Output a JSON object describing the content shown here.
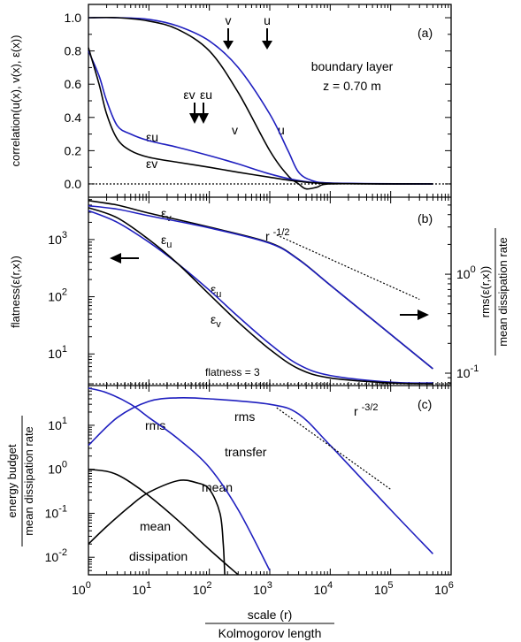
{
  "figure": {
    "x_axis": {
      "label_top": "scale (r)",
      "label_bottom": "Kolmogorov length",
      "ticks": [
        {
          "value": 1,
          "base": "10",
          "exp": "0"
        },
        {
          "value": 10,
          "base": "10",
          "exp": "1"
        },
        {
          "value": 100,
          "base": "10",
          "exp": "2"
        },
        {
          "value": 1000,
          "base": "10",
          "exp": "3"
        },
        {
          "value": 10000,
          "base": "10",
          "exp": "4"
        },
        {
          "value": 100000,
          "base": "10",
          "exp": "5"
        },
        {
          "value": 1000000,
          "base": "10",
          "exp": "6"
        }
      ],
      "scale": "log",
      "range": [
        1,
        1000000
      ]
    },
    "colors": {
      "u_series": "#1f1fbf",
      "v_series": "#000000",
      "reference": "#000000"
    }
  },
  "chart_data": [
    {
      "panel_label": "(a)",
      "type": "line",
      "ylabel": "correlation(u(x), v(x), ε(x))",
      "yscale": "linear",
      "ylim": [
        -0.08,
        1.08
      ],
      "y_ticks": [
        "0.0",
        "0.2",
        "0.4",
        "0.6",
        "0.8",
        "1.0"
      ],
      "y_tick_values": [
        0,
        0.2,
        0.4,
        0.6,
        0.8,
        1.0
      ],
      "annotations": [
        "boundary layer",
        "z = 0.70 m"
      ],
      "arrow_labels": [
        {
          "text": "v",
          "at_r": 250
        },
        {
          "text": "u",
          "at_r": 1200
        },
        {
          "text": "εv",
          "at_r": 70
        },
        {
          "text": "εu",
          "at_r": 90
        }
      ],
      "series": [
        {
          "name": "u",
          "color": "#1f1fbf",
          "x": [
            1,
            3,
            10,
            30,
            100,
            300,
            1000,
            2000,
            3000,
            5000,
            10000,
            100000,
            500000
          ],
          "y": [
            1.0,
            1.0,
            0.99,
            0.95,
            0.86,
            0.7,
            0.42,
            0.2,
            0.07,
            0.02,
            0.005,
            0.0,
            0.0
          ]
        },
        {
          "name": "v",
          "color": "#000000",
          "x": [
            1,
            3,
            10,
            30,
            100,
            300,
            1000,
            2000,
            3000,
            4000,
            6000,
            10000,
            100000,
            500000
          ],
          "y": [
            1.0,
            1.0,
            0.98,
            0.93,
            0.8,
            0.55,
            0.2,
            0.05,
            0.0,
            -0.03,
            -0.02,
            0.0,
            0.0,
            0.0
          ]
        },
        {
          "name": "εu",
          "color": "#1f1fbf",
          "x": [
            1,
            1.5,
            2,
            3,
            5,
            10,
            30,
            100,
            300,
            1000,
            3000,
            10000,
            500000
          ],
          "y": [
            0.8,
            0.65,
            0.5,
            0.35,
            0.3,
            0.26,
            0.22,
            0.17,
            0.12,
            0.06,
            0.02,
            0.005,
            0.0
          ]
        },
        {
          "name": "εv",
          "color": "#000000",
          "x": [
            1,
            1.5,
            2,
            3,
            5,
            10,
            30,
            100,
            300,
            1000,
            3000,
            10000,
            500000
          ],
          "y": [
            0.82,
            0.6,
            0.42,
            0.27,
            0.2,
            0.16,
            0.13,
            0.1,
            0.07,
            0.04,
            0.015,
            0.003,
            0.0
          ]
        }
      ],
      "reference_lines": [
        {
          "label": "",
          "y": 0.0,
          "style": "dotted"
        }
      ]
    },
    {
      "panel_label": "(b)",
      "type": "line",
      "ylabel": "flatness(ε(r,x))",
      "yscale": "log",
      "ylim": [
        2.8,
        5500
      ],
      "y_ticks": [
        {
          "base": "10",
          "exp": "1",
          "value": 10
        },
        {
          "base": "10",
          "exp": "2",
          "value": 100
        },
        {
          "base": "10",
          "exp": "3",
          "value": 1000
        }
      ],
      "right_axis": {
        "label_top": "rms(ε(r,x))",
        "label_bottom": "mean dissipation rate",
        "scale": "log",
        "ticks": [
          {
            "base": "10",
            "exp": "0",
            "value": 1
          },
          {
            "base": "10",
            "exp": "-1",
            "value": 0.1
          }
        ]
      },
      "annotations": [
        "r -1/2",
        "flatness = 3"
      ],
      "series": [
        {
          "name": "εv (rms)",
          "color": "#000000",
          "x": [
            1,
            3,
            10,
            100,
            1000,
            3000,
            10000,
            100000,
            500000
          ],
          "y": [
            4800,
            4000,
            2900,
            1650,
            880,
            450,
            160,
            22,
            5.5
          ]
        },
        {
          "name": "εu (rms)",
          "color": "#1f1fbf",
          "x": [
            1,
            3,
            10,
            100,
            1000,
            3000,
            10000,
            100000,
            500000
          ],
          "y": [
            3900,
            3400,
            2600,
            1600,
            860,
            445,
            160,
            22,
            5.5
          ]
        },
        {
          "name": "εu (flatness)",
          "color": "#1f1fbf",
          "x": [
            1,
            3,
            10,
            30,
            100,
            300,
            1000,
            3000,
            10000,
            100000,
            500000
          ],
          "y": [
            3200,
            2000,
            900,
            380,
            130,
            45,
            15,
            6.5,
            4.2,
            3.2,
            3.1
          ]
        },
        {
          "name": "εv (flatness)",
          "color": "#000000",
          "x": [
            1,
            3,
            10,
            30,
            100,
            300,
            1000,
            3000,
            10000,
            100000,
            500000
          ],
          "y": [
            3600,
            2400,
            1000,
            380,
            110,
            36,
            12,
            5.5,
            3.8,
            3.1,
            3.0
          ]
        }
      ],
      "reference_lines": [
        {
          "label": "flatness = 3",
          "y": 3,
          "style": "dotted"
        },
        {
          "label": "r -1/2",
          "style": "dotted",
          "from": [
            1300,
            1200
          ],
          "to": [
            300000,
            90
          ]
        }
      ]
    },
    {
      "panel_label": "(c)",
      "type": "line",
      "ylabel_top": "energy budget",
      "ylabel_bottom": "mean dissipation rate",
      "yscale": "log",
      "ylim": [
        0.004,
        80
      ],
      "y_ticks": [
        {
          "base": "10",
          "exp": "1",
          "value": 10
        },
        {
          "base": "10",
          "exp": "0",
          "value": 1
        },
        {
          "base": "10",
          "exp": "-1",
          "value": 0.1
        },
        {
          "base": "10",
          "exp": "-2",
          "value": 0.01
        }
      ],
      "annotations": [
        "rms",
        "rms",
        "transfer",
        "mean",
        "mean",
        "dissipation",
        "r -3/2"
      ],
      "series": [
        {
          "name": "rms dissipation",
          "color": "#1f1fbf",
          "x": [
            1,
            2,
            5,
            10,
            30,
            100,
            300,
            1000
          ],
          "y": [
            70,
            55,
            30,
            15,
            5,
            1.1,
            0.12,
            0.005
          ]
        },
        {
          "name": "rms transfer",
          "color": "#1f1fbf",
          "x": [
            1,
            3,
            10,
            30,
            100,
            1000,
            3000,
            10000,
            100000,
            500000
          ],
          "y": [
            3.5,
            15,
            35,
            42,
            40,
            30,
            18,
            3.5,
            0.12,
            0.012
          ]
        },
        {
          "name": "mean dissipation",
          "color": "#000000",
          "x": [
            1,
            2,
            3,
            5,
            10,
            30,
            100,
            300
          ],
          "y": [
            1.0,
            0.9,
            0.75,
            0.5,
            0.25,
            0.07,
            0.015,
            0.004
          ]
        },
        {
          "name": "mean transfer",
          "color": "#000000",
          "x": [
            1,
            2,
            5,
            10,
            30,
            60,
            100,
            150,
            170,
            180
          ],
          "y": [
            0.02,
            0.05,
            0.15,
            0.3,
            0.55,
            0.5,
            0.35,
            0.1,
            0.02,
            0.004
          ]
        }
      ],
      "reference_lines": [
        {
          "label": "r -3/2",
          "style": "dotted",
          "from": [
            1300,
            25
          ],
          "to": [
            100000,
            0.35
          ]
        }
      ]
    }
  ]
}
